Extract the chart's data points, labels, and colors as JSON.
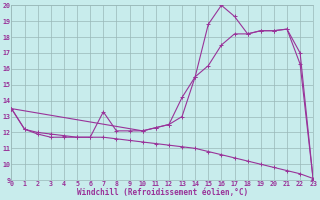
{
  "xlabel": "Windchill (Refroidissement éolien,°C)",
  "xlim": [
    0,
    23
  ],
  "ylim": [
    9,
    20
  ],
  "xtick_labels": [
    "0",
    "1",
    "2",
    "3",
    "4",
    "5",
    "6",
    "7",
    "8",
    "9",
    "10",
    "11",
    "12",
    "13",
    "14",
    "15",
    "16",
    "17",
    "18",
    "19",
    "20",
    "21",
    "22",
    "23"
  ],
  "ytick_labels": [
    "9",
    "10",
    "11",
    "12",
    "13",
    "14",
    "15",
    "16",
    "17",
    "18",
    "19",
    "20"
  ],
  "bg_color": "#c8ecec",
  "line_color": "#993399",
  "grid_color": "#9ab8b8",
  "line1_x": [
    0,
    1,
    2,
    3,
    4,
    5,
    6,
    7,
    8,
    9,
    10,
    11,
    12,
    13,
    14,
    15,
    16,
    17,
    18,
    19,
    20,
    21,
    22,
    23
  ],
  "line1_y": [
    13.5,
    12.2,
    11.9,
    11.7,
    11.7,
    11.7,
    11.7,
    13.3,
    12.1,
    12.1,
    12.1,
    12.3,
    12.5,
    13.0,
    15.5,
    18.8,
    20.0,
    19.3,
    18.2,
    18.4,
    18.4,
    18.5,
    16.3,
    9.0
  ],
  "line2_x": [
    0,
    1,
    2,
    3,
    4,
    5,
    6,
    7,
    8,
    9,
    10,
    11,
    12,
    13,
    14,
    15,
    16,
    17,
    18,
    19,
    20,
    21,
    22,
    23
  ],
  "line2_y": [
    13.5,
    12.2,
    12.0,
    11.9,
    11.8,
    11.7,
    11.7,
    11.7,
    11.6,
    11.5,
    11.4,
    11.3,
    11.2,
    11.1,
    11.0,
    10.8,
    10.6,
    10.4,
    10.2,
    10.0,
    9.8,
    9.6,
    9.4,
    9.1
  ],
  "line3_x": [
    0,
    10,
    11,
    12,
    13,
    14,
    15,
    16,
    17,
    18,
    19,
    20,
    21,
    22,
    23
  ],
  "line3_y": [
    13.5,
    12.1,
    12.3,
    12.5,
    14.2,
    15.5,
    16.2,
    17.5,
    18.2,
    18.2,
    18.4,
    18.4,
    18.5,
    17.0,
    9.0
  ],
  "marker_size": 2.5,
  "lw": 0.8,
  "xlabel_fontsize": 5.5,
  "tick_fontsize": 4.8
}
